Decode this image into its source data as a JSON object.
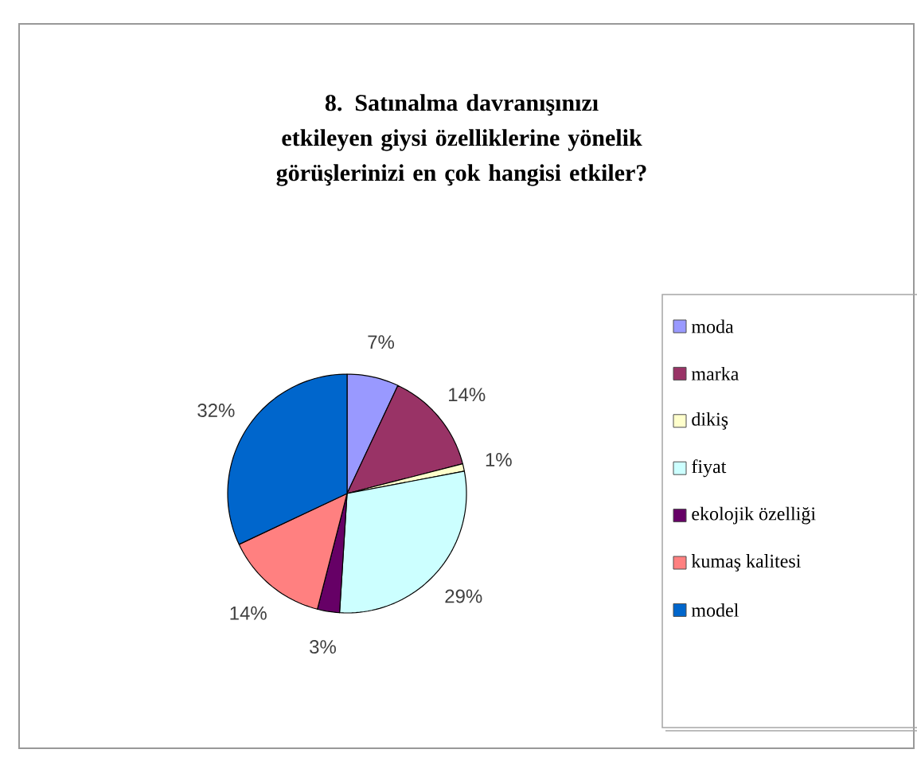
{
  "chart_data": {
    "type": "pie",
    "title": "8. Satınalma davranışınızı etkileyen giysi özelliklerine yönelik görüşlerinizi en çok hangisi etkiler?",
    "categories": [
      "moda",
      "marka",
      "dikiş",
      "fiyat",
      "ekolojik özelliği",
      "kumaş kalitesi",
      "model"
    ],
    "values": [
      7,
      14,
      1,
      29,
      3,
      14,
      32
    ],
    "colors": [
      "#9999ff",
      "#993366",
      "#ffffcc",
      "#ccffff",
      "#660066",
      "#ff8080",
      "#0066cc"
    ],
    "value_labels": [
      "7%",
      "14%",
      "1%",
      "29%",
      "3%",
      "14%",
      "32%"
    ],
    "legend": "right"
  }
}
